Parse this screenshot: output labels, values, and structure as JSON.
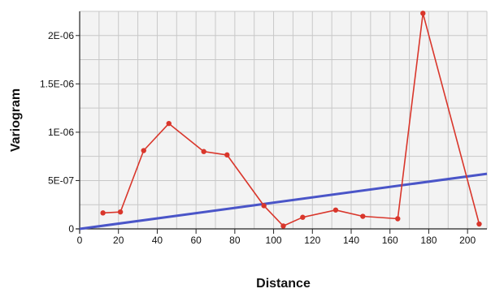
{
  "chart_data": {
    "type": "line",
    "xlabel": "Distance",
    "ylabel": "Variogram",
    "xlim": [
      0,
      210
    ],
    "ylim": [
      0,
      2.25e-06
    ],
    "x_ticks": [
      0,
      20,
      40,
      60,
      80,
      100,
      120,
      140,
      160,
      180,
      200
    ],
    "x_minor_step": 10,
    "y_ticks": [
      {
        "value": 0,
        "label": "0"
      },
      {
        "value": 5e-07,
        "label": "5E-07"
      },
      {
        "value": 1e-06,
        "label": "1E-06"
      },
      {
        "value": 1.5e-06,
        "label": "1.5E-06"
      },
      {
        "value": 2e-06,
        "label": "2E-06"
      }
    ],
    "y_minor_step": 2.5e-07,
    "grid": true,
    "plot_background": "#f3f3f3",
    "grid_color": "#c8c8c8",
    "series": [
      {
        "kind": "experimental",
        "color": "#d9362b",
        "marker": "circle",
        "x": [
          12,
          21,
          33,
          46,
          64,
          76,
          95,
          105,
          115,
          132,
          146,
          164,
          177,
          206
        ],
        "y": [
          1.65e-07,
          1.75e-07,
          8.1e-07,
          1.09e-06,
          8e-07,
          7.65e-07,
          2.4e-07,
          3e-08,
          1.2e-07,
          1.95e-07,
          1.3e-07,
          1.05e-07,
          2.23e-06,
          5e-08
        ]
      },
      {
        "kind": "model",
        "color": "#4a55c8",
        "marker": "none",
        "x": [
          0,
          210
        ],
        "y": [
          0,
          5.7e-07
        ]
      }
    ]
  }
}
